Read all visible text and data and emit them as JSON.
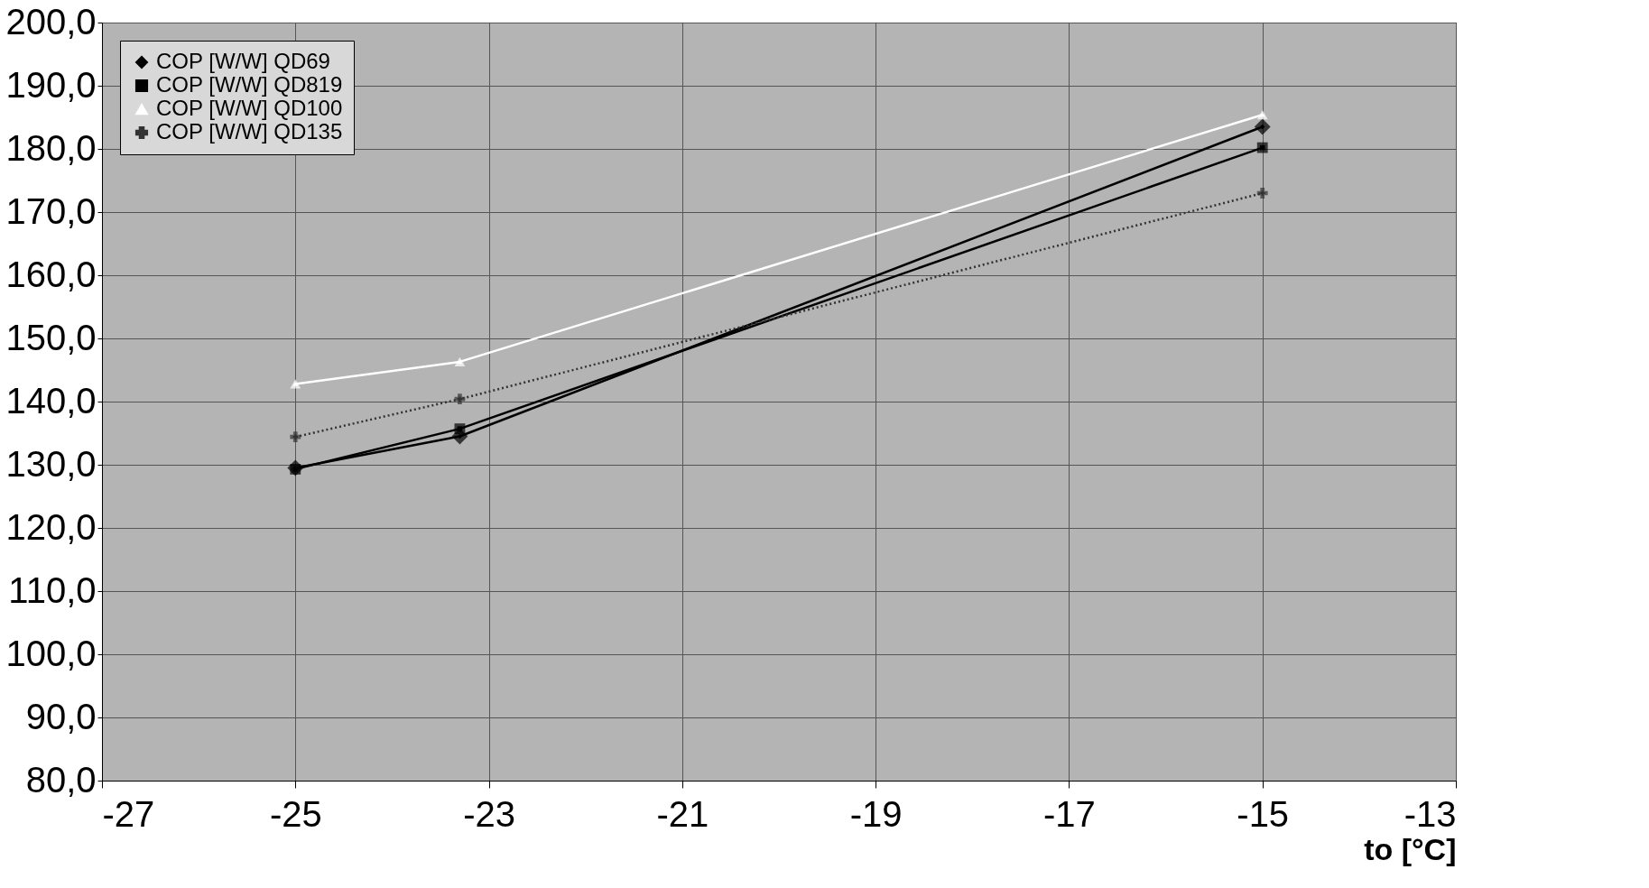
{
  "chart_data": {
    "type": "line",
    "xlabel": "to [°C]",
    "x": [
      -25,
      -23.3,
      -15
    ],
    "series": [
      {
        "name": "COP [W/W] QD69",
        "color": "#000000",
        "marker": "diamond",
        "line_style": "solid",
        "values": [
          129.5,
          134.5,
          183.5
        ]
      },
      {
        "name": "COP [W/W] QD819",
        "color": "#000000",
        "marker": "square",
        "line_style": "solid",
        "values": [
          129.3,
          135.7,
          180.2
        ]
      },
      {
        "name": "COP [W/W] QD100",
        "color": "#ffffff",
        "marker": "triangle",
        "line_style": "solid",
        "values": [
          142.8,
          146.3,
          185.4
        ]
      },
      {
        "name": "COP [W/W] QD135",
        "color": "#333333",
        "marker": "cross",
        "line_style": "dotted",
        "values": [
          134.4,
          140.4,
          173.0
        ]
      }
    ],
    "xlim": [
      -27,
      -13
    ],
    "xticks": [
      -27,
      -25,
      -23,
      -21,
      -19,
      -17,
      -15,
      -13
    ],
    "ylim": [
      80,
      200
    ],
    "yticks": [
      {
        "value": 80,
        "label": "80,0"
      },
      {
        "value": 90,
        "label": "90,0"
      },
      {
        "value": 100,
        "label": "100,0"
      },
      {
        "value": 110,
        "label": "110,0"
      },
      {
        "value": 120,
        "label": "120,0"
      },
      {
        "value": 130,
        "label": "130,0"
      },
      {
        "value": 140,
        "label": "140,0"
      },
      {
        "value": 150,
        "label": "150,0"
      },
      {
        "value": 160,
        "label": "160,0"
      },
      {
        "value": 170,
        "label": "170,0"
      },
      {
        "value": 180,
        "label": "180,0"
      },
      {
        "value": 190,
        "label": "190,0"
      },
      {
        "value": 200,
        "label": "200,0"
      }
    ],
    "grid": true,
    "legend": "top left"
  }
}
